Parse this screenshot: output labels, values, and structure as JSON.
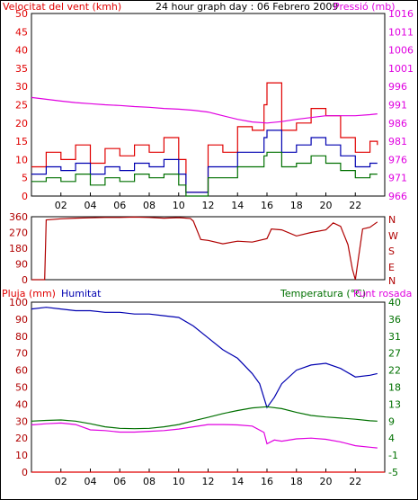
{
  "colors": {
    "red": "#e00000",
    "blue": "#0000b0",
    "green": "#007000",
    "magenta": "#e000e0",
    "dark_red": "#b00000",
    "grid": "#000000"
  },
  "top_panel": {
    "title_left": "Velocitat del vent (kmh)",
    "title_center": "24 hour graph day : 06 Febrero 2009",
    "title_right": "Pressió (mb)"
  },
  "mid_panel": {
    "right_labels": [
      "N",
      "W",
      "S",
      "E",
      "N"
    ]
  },
  "bottom_panel": {
    "label_rain": "Pluja (mm)",
    "label_humidity": "Humitat",
    "label_temp": "Temperatura (°C)",
    "label_dew": "Punt rosada"
  },
  "chart_data": [
    {
      "type": "line",
      "title": "24 hour graph day : 06 Febrero 2009",
      "x_ticks": [
        "02",
        "04",
        "06",
        "08",
        "10",
        "12",
        "14",
        "16",
        "18",
        "20",
        "22"
      ],
      "xlim": [
        0,
        24
      ],
      "y_left_label": "Velocitat del vent (kmh)",
      "y_left_ticks": [
        "0",
        "5",
        "10",
        "15",
        "20",
        "25",
        "30",
        "35",
        "40",
        "45",
        "50"
      ],
      "ylim_left": [
        0,
        50
      ],
      "y_right_label": "Pressió (mb)",
      "y_right_ticks": [
        "966",
        "971",
        "976",
        "981",
        "986",
        "991",
        "996",
        "1001",
        "1006",
        "1011",
        "1016"
      ],
      "ylim_right": [
        966,
        1016
      ],
      "series": [
        {
          "name": "",
          "color": "red",
          "axis": "left",
          "x": [
            0,
            1,
            2,
            3,
            4,
            5,
            6,
            7,
            8,
            9,
            10,
            10.5,
            11.5,
            12,
            13,
            14,
            15,
            15.8,
            16,
            17,
            18,
            19,
            20,
            21,
            22,
            23,
            23.5
          ],
          "y": [
            8,
            12,
            10,
            14,
            9,
            13,
            11,
            14,
            12,
            16,
            10,
            1,
            1,
            14,
            12,
            19,
            18,
            25,
            31,
            18,
            20,
            24,
            22,
            16,
            12,
            15,
            14
          ]
        },
        {
          "name": "",
          "color": "blue",
          "axis": "left",
          "x": [
            0,
            1,
            2,
            3,
            4,
            5,
            6,
            7,
            8,
            9,
            10,
            10.5,
            11.5,
            12,
            13,
            14,
            15,
            15.8,
            16,
            17,
            18,
            19,
            20,
            21,
            22,
            23,
            23.5
          ],
          "y": [
            6,
            8,
            7,
            9,
            6,
            8,
            7,
            9,
            8,
            10,
            6,
            1,
            1,
            8,
            8,
            12,
            12,
            16,
            18,
            12,
            14,
            16,
            14,
            11,
            8,
            9,
            9
          ]
        },
        {
          "name": "",
          "color": "green",
          "axis": "left",
          "x": [
            0,
            1,
            2,
            3,
            4,
            5,
            6,
            7,
            8,
            9,
            10,
            10.5,
            11.5,
            12,
            13,
            14,
            15,
            15.8,
            16,
            17,
            18,
            19,
            20,
            21,
            22,
            23,
            23.5
          ],
          "y": [
            4,
            5,
            4,
            6,
            3,
            5,
            4,
            6,
            5,
            6,
            3,
            0,
            0,
            5,
            5,
            8,
            8,
            11,
            12,
            8,
            9,
            11,
            9,
            7,
            5,
            6,
            6
          ]
        },
        {
          "name": "",
          "color": "magenta",
          "axis": "right",
          "x": [
            0,
            1,
            2,
            3,
            4,
            5,
            6,
            7,
            8,
            9,
            10,
            11,
            12,
            13,
            14,
            15,
            16,
            17,
            18,
            19,
            20,
            21,
            22,
            23,
            23.5
          ],
          "y": [
            993,
            992.5,
            992,
            991.6,
            991.3,
            991,
            990.8,
            990.5,
            990.3,
            990,
            989.8,
            989.5,
            989,
            988,
            987,
            986.3,
            986,
            986.4,
            987,
            987.5,
            988,
            988,
            988,
            988.3,
            988.5
          ]
        }
      ]
    },
    {
      "type": "line",
      "title": "",
      "x_ticks": [
        "02",
        "04",
        "06",
        "08",
        "10",
        "12",
        "14",
        "16",
        "18",
        "20",
        "22"
      ],
      "xlim": [
        0,
        24
      ],
      "y_left_ticks": [
        "0",
        "90",
        "180",
        "270",
        "360"
      ],
      "ylim": [
        0,
        360
      ],
      "y_right_ticks": [
        "N",
        "E",
        "S",
        "W",
        "N"
      ],
      "series": [
        {
          "name": "",
          "color": "dark_red",
          "x": [
            0,
            0.9,
            1,
            2,
            3,
            4,
            5,
            6,
            7,
            8,
            9,
            10,
            10.8,
            11,
            11.5,
            12,
            13,
            14,
            15,
            16,
            16.3,
            17,
            18,
            19,
            20,
            20.5,
            21,
            21.5,
            21.8,
            22,
            22.5,
            23,
            23.5
          ],
          "y": [
            0,
            0,
            342,
            348,
            352,
            354,
            356,
            356,
            358,
            356,
            352,
            355,
            350,
            335,
            230,
            225,
            205,
            220,
            215,
            235,
            290,
            285,
            250,
            270,
            285,
            325,
            305,
            200,
            60,
            0,
            290,
            300,
            330
          ]
        }
      ]
    },
    {
      "type": "line",
      "title": "",
      "x_ticks": [
        "02",
        "04",
        "06",
        "08",
        "10",
        "12",
        "14",
        "16",
        "18",
        "20",
        "22"
      ],
      "xlim": [
        0,
        24
      ],
      "y_left_label": "Pluja (mm)",
      "y_left_ticks": [
        "0",
        "10",
        "20",
        "30",
        "40",
        "50",
        "60",
        "70",
        "80",
        "90",
        "100"
      ],
      "ylim_left": [
        0,
        100
      ],
      "y_right_label": "Temperatura (°C)",
      "y_right_ticks": [
        "-5",
        "-1",
        "4",
        "9",
        "13",
        "18",
        "22",
        "27",
        "31",
        "36",
        "40"
      ],
      "ylim_right": [
        -5,
        40
      ],
      "series": [
        {
          "name": "Humitat",
          "color": "blue",
          "axis": "left",
          "x": [
            0,
            1,
            2,
            3,
            4,
            5,
            6,
            7,
            8,
            9,
            10,
            11,
            12,
            13,
            14,
            15,
            15.5,
            16,
            16.5,
            17,
            18,
            19,
            20,
            21,
            22,
            23,
            23.5
          ],
          "y": [
            96,
            97,
            96,
            95,
            95,
            94,
            94,
            93,
            93,
            92,
            91,
            86,
            79,
            72,
            67,
            58,
            52,
            38,
            44,
            52,
            60,
            63,
            64,
            61,
            56,
            57,
            58
          ]
        },
        {
          "name": "Pluja (mm)",
          "color": "red",
          "axis": "left",
          "x": [
            0,
            24
          ],
          "y": [
            0,
            0
          ]
        },
        {
          "name": "Temperatura (°C)",
          "color": "green",
          "axis": "right",
          "x": [
            0,
            1,
            2,
            3,
            4,
            5,
            6,
            7,
            8,
            9,
            10,
            11,
            12,
            13,
            14,
            15,
            16,
            17,
            18,
            19,
            20,
            21,
            22,
            23,
            23.5
          ],
          "y": [
            8.5,
            8.7,
            8.8,
            8.5,
            7.8,
            7,
            6.6,
            6.5,
            6.6,
            7,
            7.6,
            8.6,
            9.5,
            10.5,
            11.3,
            12,
            12.3,
            11.8,
            10.8,
            10,
            9.6,
            9.3,
            9,
            8.6,
            8.5
          ]
        },
        {
          "name": "Punt rosada",
          "color": "magenta",
          "axis": "right",
          "x": [
            0,
            1,
            2,
            3,
            4,
            5,
            6,
            7,
            8,
            9,
            10,
            11,
            12,
            13,
            14,
            15,
            15.8,
            16,
            16.5,
            17,
            18,
            19,
            20,
            21,
            22,
            23,
            23.5
          ],
          "y": [
            7.5,
            7.8,
            8,
            7.6,
            6.2,
            6,
            5.6,
            5.6,
            5.8,
            6,
            6.4,
            7,
            7.6,
            7.6,
            7.5,
            7.2,
            5.5,
            2.5,
            3.5,
            3.2,
            3.8,
            4,
            3.7,
            3,
            2,
            1.6,
            1.4
          ]
        }
      ]
    }
  ]
}
